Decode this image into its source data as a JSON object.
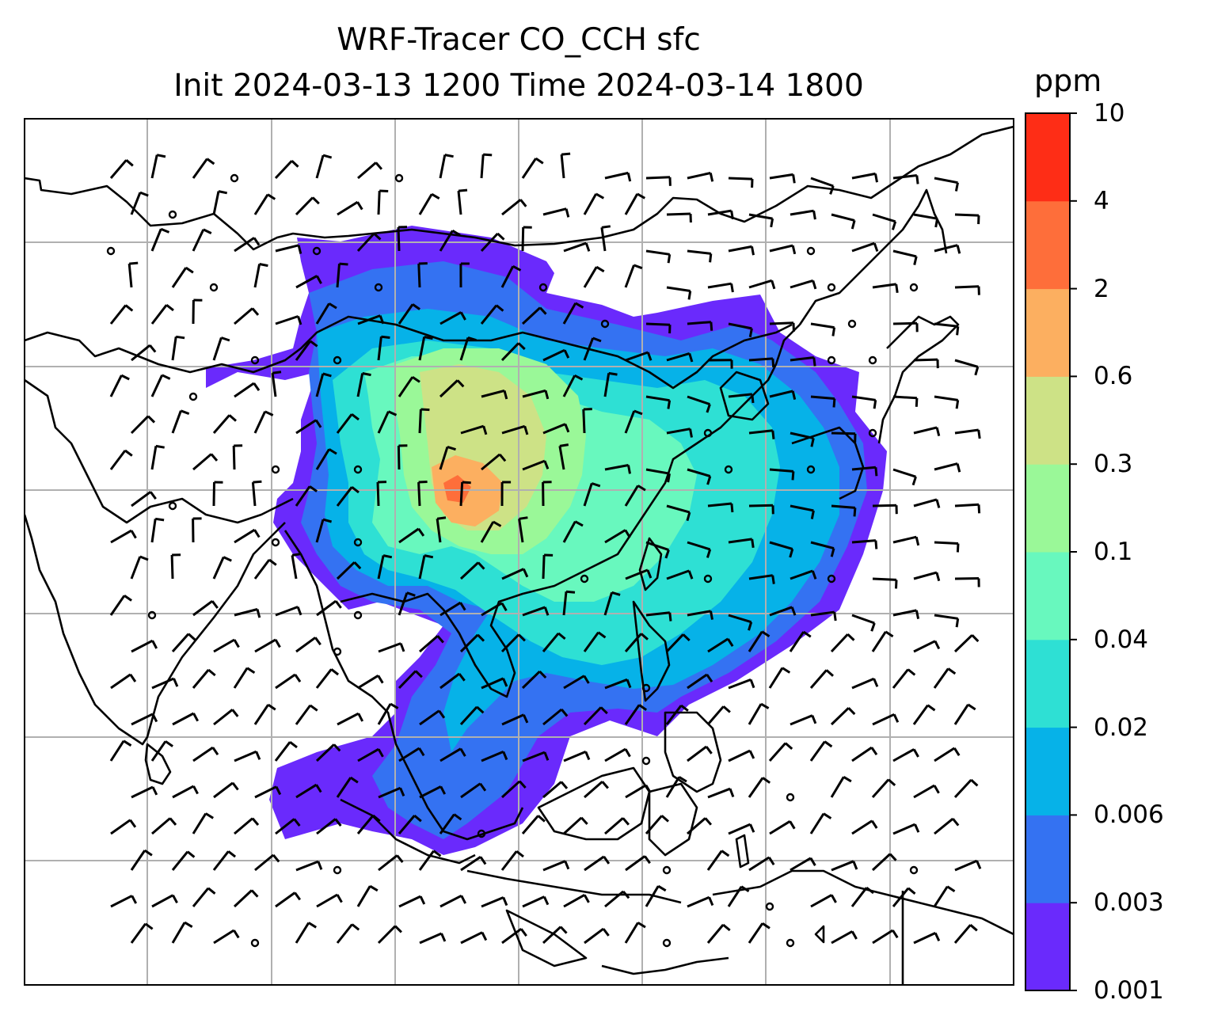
{
  "title": {
    "line1": "WRF-Tracer CO_CCH sfc",
    "line2": "Init 2024-03-13 1200 Time 2024-03-14 1800"
  },
  "colorbar": {
    "unit": "ppm",
    "ticks": [
      "0.001",
      "0.003",
      "0.006",
      "0.02",
      "0.04",
      "0.1",
      "0.3",
      "0.6",
      "2",
      "4",
      "10"
    ],
    "colors": [
      "#6a2afc",
      "#3472f2",
      "#06b2e8",
      "#2ee0d4",
      "#68f8be",
      "#9af898",
      "#cde286",
      "#fcaf60",
      "#fe6e3a",
      "#fe2d16"
    ]
  },
  "map": {
    "grid": "on",
    "wind_barbs": "on"
  }
}
